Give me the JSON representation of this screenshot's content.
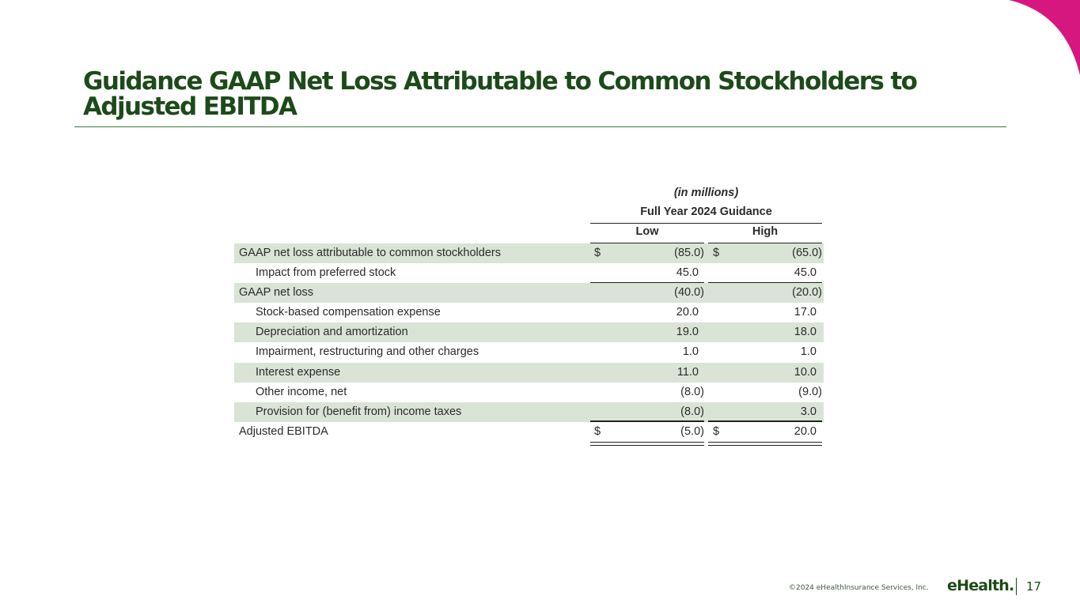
{
  "title": {
    "line1": "Guidance GAAP Net Loss Attributable to Common Stockholders to",
    "line2": "Adjusted EBITDA"
  },
  "table": {
    "units": "(in millions)",
    "group_header": "Full Year 2024 Guidance",
    "col_low": "Low",
    "col_high": "High",
    "rows": [
      {
        "label": "GAAP net loss attributable to common stockholders",
        "dollar_low": "$",
        "low": "(85.0)",
        "dollar_high": "$",
        "high": "(65.0)"
      },
      {
        "label": "Impact from preferred stock",
        "low": "45.0",
        "high": "45.0"
      },
      {
        "label": "GAAP net loss",
        "low": "(40.0)",
        "high": "(20.0)"
      },
      {
        "label": "Stock-based compensation expense",
        "low": "20.0",
        "high": "17.0"
      },
      {
        "label": "Depreciation and amortization",
        "low": "19.0",
        "high": "18.0"
      },
      {
        "label": "Impairment, restructuring and other charges",
        "low": "1.0",
        "high": "1.0"
      },
      {
        "label": "Interest expense",
        "low": "11.0",
        "high": "10.0"
      },
      {
        "label": "Other income, net",
        "low": "(8.0)",
        "high": "(9.0)"
      },
      {
        "label": "Provision for (benefit from) income taxes",
        "low": "(8.0)",
        "high": "3.0"
      },
      {
        "label": "Adjusted EBITDA",
        "dollar_low": "$",
        "low": "(5.0)",
        "dollar_high": "$",
        "high": "20.0"
      }
    ]
  },
  "footer": {
    "copyright": "©2024 eHealthInsurance Services, Inc.",
    "logo": "eHealth.",
    "page_number": "17"
  },
  "colors": {
    "brand_green": "#1d4a1a",
    "row_shade": "#d9e4d6",
    "accent_magenta": "#d6177f"
  }
}
